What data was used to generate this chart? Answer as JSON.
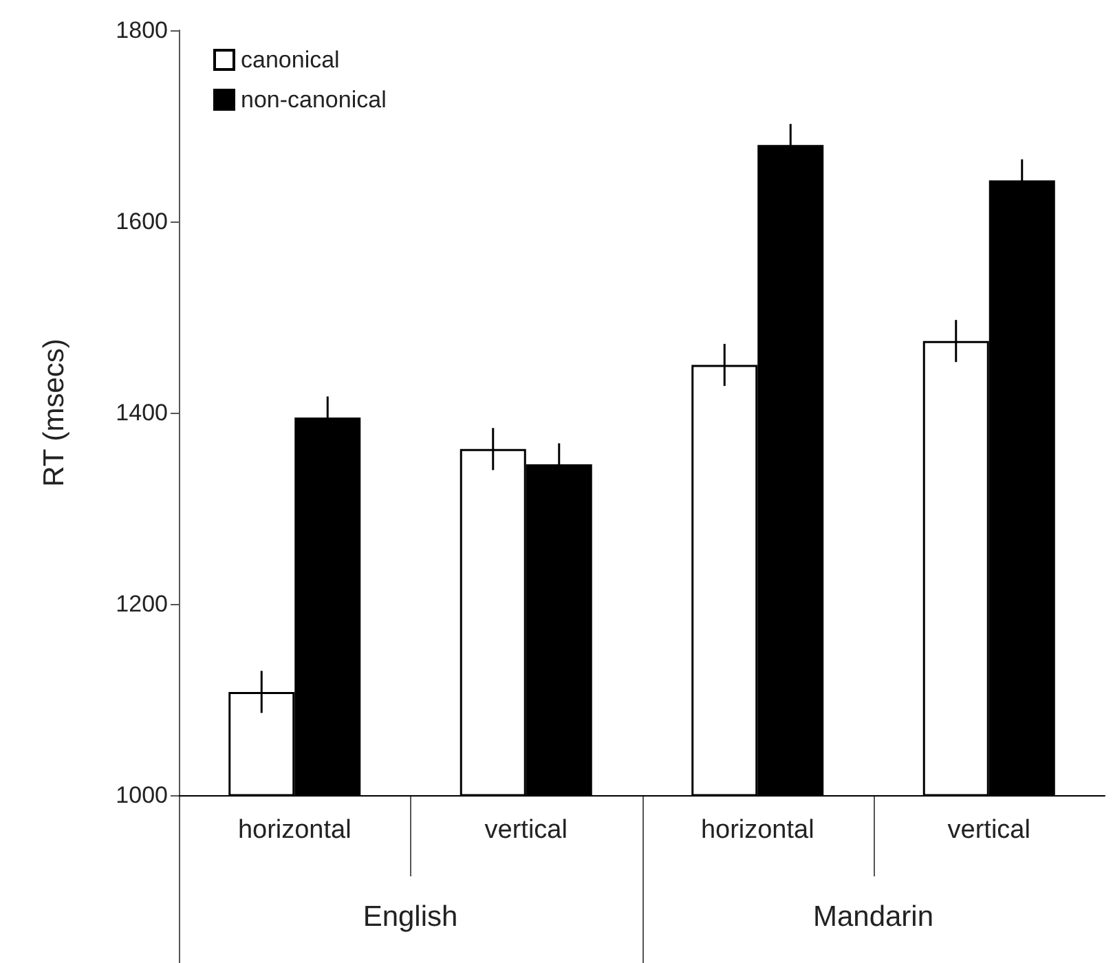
{
  "chart_data": {
    "type": "bar",
    "ylabel": "RT (msecs)",
    "categories": [
      "horizontal",
      "vertical",
      "horizontal",
      "vertical"
    ],
    "annotations": [
      "English",
      "Mandarin"
    ],
    "series": [
      {
        "name": "canonical",
        "color": "#ffffff",
        "values": [
          1108,
          1362,
          1450,
          1475
        ],
        "errors": [
          22,
          22,
          22,
          22
        ]
      },
      {
        "name": "non-canonical",
        "color": "#000000",
        "values": [
          1395,
          1346,
          1680,
          1643
        ],
        "errors": [
          22,
          22,
          22,
          22
        ]
      }
    ],
    "ylim": [
      1000,
      1800
    ],
    "yticks": [
      1000,
      1200,
      1400,
      1600,
      1800
    ],
    "grid": false,
    "legend": "top left"
  }
}
